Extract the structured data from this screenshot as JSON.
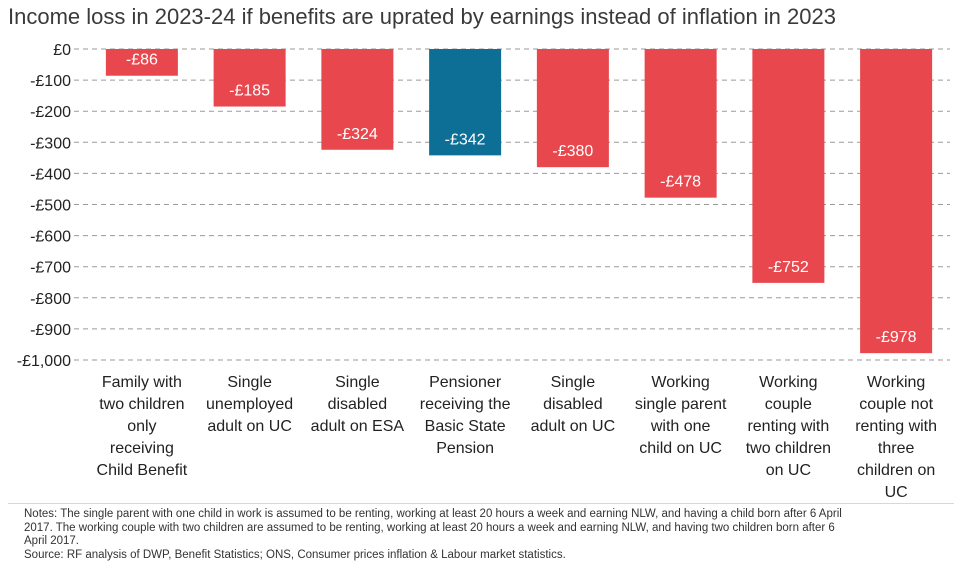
{
  "chart_data": {
    "type": "bar",
    "title": "Income loss in 2023-24 if benefits are uprated by earnings instead of inflation in 2023",
    "categories": [
      "Family with two children only receiving Child Benefit",
      "Single unemployed adult on UC",
      "Single disabled adult on ESA",
      "Pensioner receiving the Basic State Pension",
      "Single disabled adult on UC",
      "Working single parent with one child on UC",
      "Working couple renting with two children on UC",
      "Working couple not renting with three children on UC"
    ],
    "category_lines": [
      [
        "Family with",
        "two children",
        "only",
        "receiving",
        "Child Benefit"
      ],
      [
        "Single",
        "unemployed",
        "adult on UC"
      ],
      [
        "Single",
        "disabled",
        "adult on ESA"
      ],
      [
        "Pensioner",
        "receiving the",
        "Basic State",
        "Pension"
      ],
      [
        "Single",
        "disabled",
        "adult on UC"
      ],
      [
        "Working",
        "single parent",
        "with one",
        "child on UC"
      ],
      [
        "Working",
        "couple",
        "renting with",
        "two children",
        "on UC"
      ],
      [
        "Working",
        "couple not",
        "renting with",
        "three",
        "children on",
        "UC"
      ]
    ],
    "values": [
      -86,
      -185,
      -324,
      -342,
      -380,
      -478,
      -752,
      -978
    ],
    "value_labels": [
      "-£86",
      "-£185",
      "-£324",
      "-£342",
      "-£380",
      "-£478",
      "-£752",
      "-£978"
    ],
    "bar_colors": [
      "#e8474d",
      "#e8474d",
      "#e8474d",
      "#0d6e96",
      "#e8474d",
      "#e8474d",
      "#e8474d",
      "#e8474d"
    ],
    "ylim": [
      -1000,
      0
    ],
    "yticks": [
      0,
      -100,
      -200,
      -300,
      -400,
      -500,
      -600,
      -700,
      -800,
      -900,
      -1000
    ],
    "ytick_labels": [
      "£0",
      "-£100",
      "-£200",
      "-£300",
      "-£400",
      "-£500",
      "-£600",
      "-£700",
      "-£800",
      "-£900",
      "-£1,000"
    ],
    "grid": "dashed horizontal",
    "xlabel": "",
    "ylabel": ""
  },
  "colors": {
    "highlight": "#0d6e96",
    "default_bar": "#e8474d",
    "grid": "#9a9a9a"
  },
  "notes": [
    "Notes: The single parent with one child in work is assumed to be renting, working at least 20 hours a week and earning NLW, and having a child born after 6 April",
    "2017. The working couple with two children are assumed to be renting, working at least 20 hours a week and earning NLW, and having two children born after 6",
    "April 2017.",
    "Source: RF analysis of DWP, Benefit Statistics; ONS, Consumer prices inflation & Labour market statistics."
  ]
}
